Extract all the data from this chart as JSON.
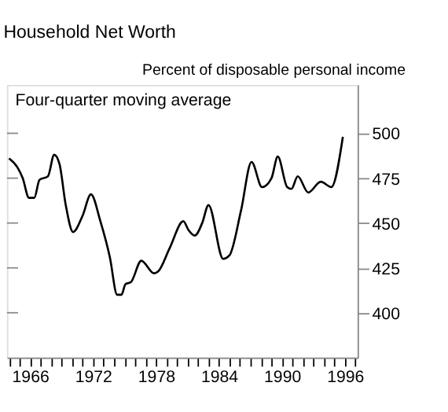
{
  "chart_data": {
    "type": "line",
    "title": "Household Net Worth",
    "ylabel": "Percent of disposable personal income",
    "annotations": [
      "Four-quarter moving average"
    ],
    "x": [
      1964.0,
      1964.8,
      1965.3,
      1965.9,
      1966.4,
      1966.9,
      1967.7,
      1968.3,
      1968.8,
      1969.4,
      1970.1,
      1971.0,
      1971.8,
      1972.7,
      1973.6,
      1974.3,
      1974.7,
      1975.1,
      1975.6,
      1976.6,
      1977.8,
      1978.2,
      1979.3,
      1980.6,
      1981.1,
      1981.7,
      1982.4,
      1983.0,
      1984.4,
      1985.0,
      1986.1,
      1987.1,
      1988.1,
      1989.0,
      1989.6,
      1990.5,
      1990.9,
      1991.5,
      1992.5,
      1993.7,
      1994.7,
      1995.8
    ],
    "series": [
      {
        "color": "#000000",
        "values": [
          486,
          481,
          475,
          464,
          464,
          474,
          476,
          488,
          483,
          460,
          445,
          454,
          466,
          451,
          431,
          410,
          410,
          416,
          417,
          429,
          422,
          423,
          436,
          451,
          446,
          443,
          450,
          460,
          430,
          432,
          457,
          484,
          470,
          475,
          487,
          470,
          469,
          476,
          467,
          473,
          470,
          498
        ]
      }
    ],
    "xlim": [
      1963.8,
      1997.2
    ],
    "xticks": [
      1966,
      1972,
      1978,
      1984,
      1990,
      1996
    ],
    "ylim": [
      375,
      527
    ],
    "yticks": [
      400,
      425,
      450,
      475,
      500
    ],
    "grid": false,
    "legend": false,
    "marker": "none",
    "line_style": "solid"
  }
}
